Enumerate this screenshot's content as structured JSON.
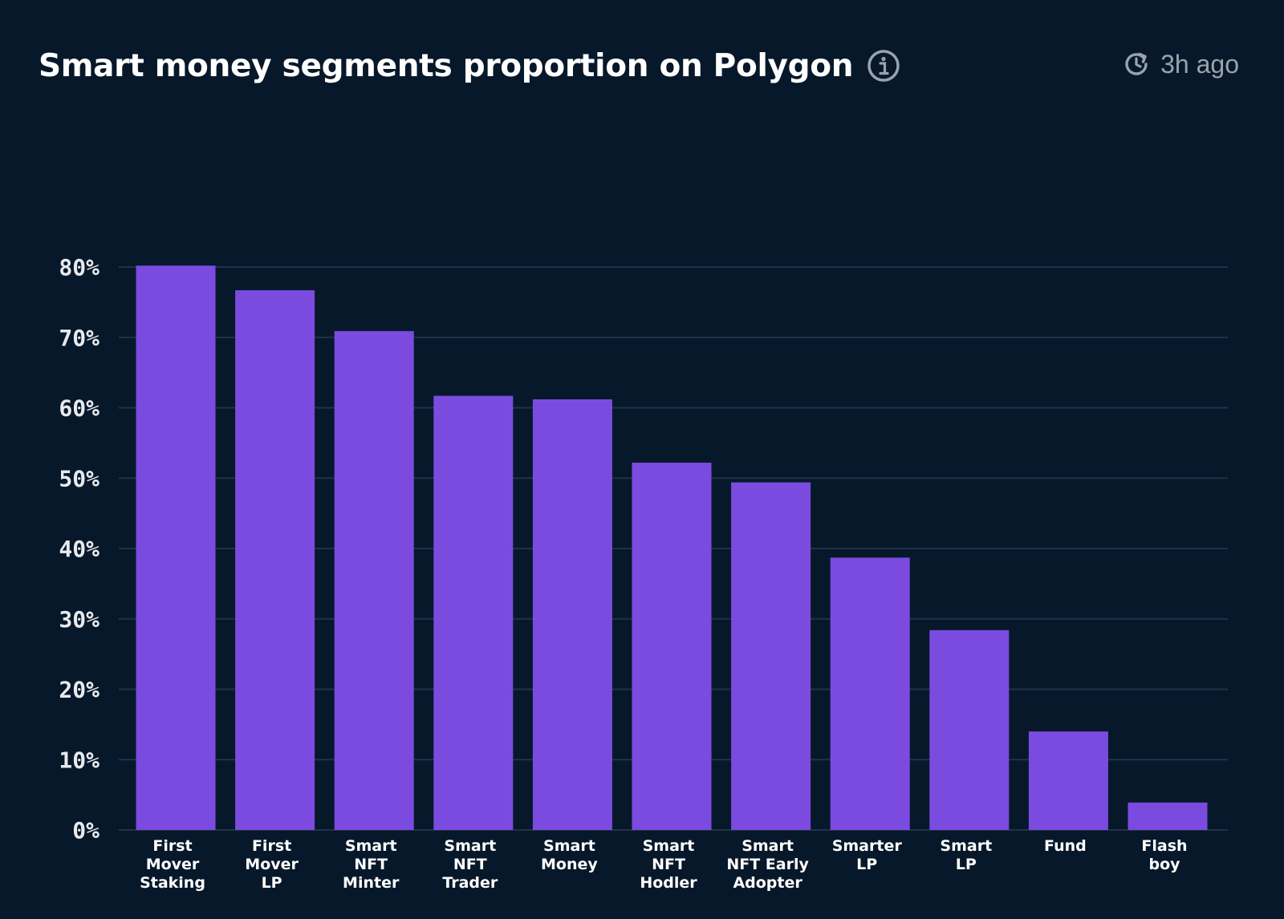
{
  "header": {
    "title": "Smart money segments proportion on Polygon",
    "info_icon": "info-icon",
    "updated_icon": "refresh-clock-icon",
    "updated_text": "3h ago"
  },
  "colors": {
    "background": "#07182a",
    "bar": "#7b4be0",
    "grid": "#1f3349",
    "text": "#ffffff",
    "muted": "#9aa3ad"
  },
  "chart_data": {
    "type": "bar",
    "title": "Smart money segments proportion on Polygon",
    "xlabel": "",
    "ylabel": "",
    "ylim": [
      0,
      80
    ],
    "yticks": [
      "0%",
      "10%",
      "20%",
      "30%",
      "40%",
      "50%",
      "60%",
      "70%",
      "80%"
    ],
    "grid": true,
    "categories": [
      [
        "First",
        "Mover",
        "Staking"
      ],
      [
        "First",
        "Mover",
        "LP"
      ],
      [
        "Smart",
        "NFT",
        "Minter"
      ],
      [
        "Smart",
        "NFT",
        "Trader"
      ],
      [
        "Smart",
        "Money"
      ],
      [
        "Smart",
        "NFT",
        "Hodler"
      ],
      [
        "Smart",
        "NFT Early",
        "Adopter"
      ],
      [
        "Smarter",
        "LP"
      ],
      [
        "Smart",
        "LP"
      ],
      [
        "Fund"
      ],
      [
        "Flash",
        "boy"
      ]
    ],
    "values": [
      80.2,
      76.7,
      70.9,
      61.7,
      61.2,
      52.2,
      49.4,
      38.7,
      28.4,
      14.0,
      3.9
    ],
    "unit": "%"
  }
}
